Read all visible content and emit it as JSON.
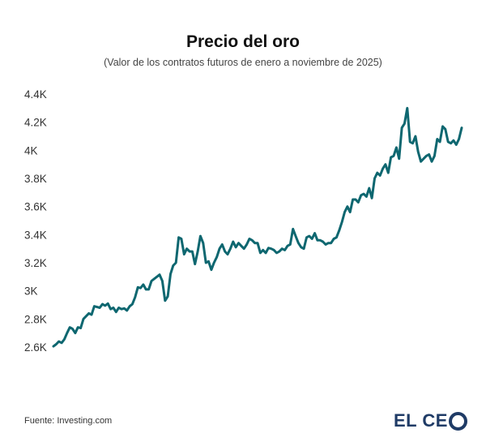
{
  "header": {
    "title": "Precio del oro",
    "subtitle": "(Valor de los contratos futuros de enero a noviembre de 2025)"
  },
  "footer": {
    "source": "Fuente: Investing.com",
    "logo_text": "EL CE",
    "logo_full": "EL CEO"
  },
  "colors": {
    "line": "#0e6770",
    "logo": "#1f3b66"
  },
  "chart_data": {
    "type": "line",
    "title": "Precio del oro",
    "subtitle": "(Valor de los contratos futuros de enero a noviembre de 2025)",
    "xlabel": "",
    "ylabel": "",
    "ylim": [
      2600,
      4400
    ],
    "yticks": [
      {
        "value": 2600,
        "label": "2.6K"
      },
      {
        "value": 2800,
        "label": "2.8K"
      },
      {
        "value": 3000,
        "label": "3K"
      },
      {
        "value": 3200,
        "label": "3.2K"
      },
      {
        "value": 3400,
        "label": "3.4K"
      },
      {
        "value": 3600,
        "label": "3.6K"
      },
      {
        "value": 3800,
        "label": "3.8K"
      },
      {
        "value": 4000,
        "label": "4K"
      },
      {
        "value": 4200,
        "label": "4.2K"
      },
      {
        "value": 4400,
        "label": "4.4K"
      }
    ],
    "grid": false,
    "series": [
      {
        "name": "Precio del oro",
        "values": [
          2605,
          2620,
          2640,
          2630,
          2655,
          2700,
          2740,
          2730,
          2700,
          2740,
          2735,
          2800,
          2820,
          2840,
          2830,
          2890,
          2885,
          2880,
          2905,
          2895,
          2910,
          2870,
          2880,
          2850,
          2880,
          2870,
          2875,
          2860,
          2890,
          2905,
          2955,
          3025,
          3020,
          3045,
          3010,
          3010,
          3070,
          3085,
          3100,
          3115,
          3070,
          2930,
          2960,
          3120,
          3180,
          3200,
          3380,
          3370,
          3260,
          3300,
          3280,
          3280,
          3190,
          3280,
          3390,
          3340,
          3200,
          3210,
          3150,
          3200,
          3240,
          3300,
          3330,
          3280,
          3260,
          3300,
          3350,
          3310,
          3340,
          3320,
          3300,
          3330,
          3370,
          3360,
          3340,
          3340,
          3270,
          3290,
          3270,
          3305,
          3300,
          3290,
          3270,
          3280,
          3300,
          3290,
          3320,
          3330,
          3440,
          3390,
          3340,
          3310,
          3300,
          3380,
          3390,
          3370,
          3410,
          3360,
          3360,
          3350,
          3330,
          3340,
          3340,
          3370,
          3380,
          3430,
          3490,
          3560,
          3600,
          3560,
          3650,
          3650,
          3630,
          3680,
          3690,
          3670,
          3730,
          3660,
          3800,
          3840,
          3820,
          3870,
          3900,
          3840,
          3950,
          3960,
          4020,
          3940,
          4160,
          4190,
          4300,
          4060,
          4050,
          4100,
          3990,
          3920,
          3940,
          3960,
          3970,
          3920,
          3960,
          4080,
          4060,
          4170,
          4150,
          4060,
          4050,
          4070,
          4040,
          4080,
          4160
        ]
      }
    ]
  }
}
